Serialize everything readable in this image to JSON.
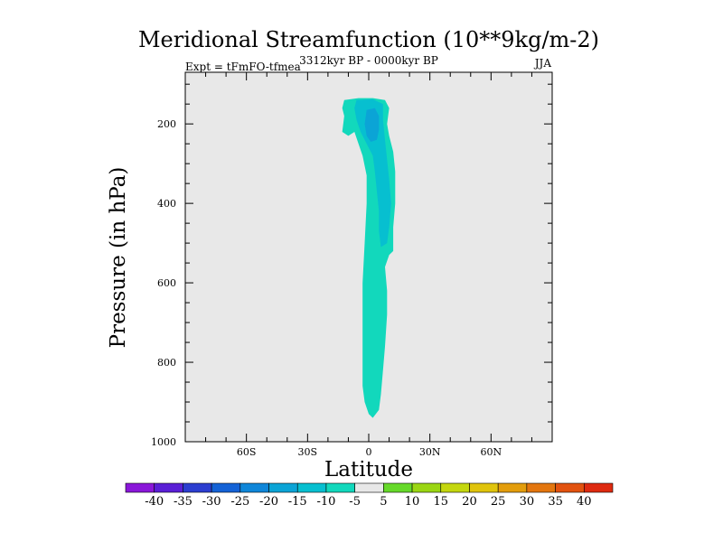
{
  "chart_data": {
    "type": "contour",
    "title": "Meridional Streamfunction (10**9kg/m-2)",
    "left_label": "Expt = tFmFO-tfmea",
    "center_label": "3312kyr BP - 0000kyr BP",
    "right_label": "JJA",
    "xlabel": "Latitude",
    "ylabel": "Pressure (in hPa)",
    "xlim": [
      -90,
      90
    ],
    "ylim": [
      1000,
      70
    ],
    "xticks": [
      -60,
      -30,
      0,
      30,
      60
    ],
    "xtick_labels": [
      "60S",
      "30S",
      "0",
      "30N",
      "60N"
    ],
    "yticks": [
      200,
      400,
      600,
      800,
      1000
    ],
    "ytick_labels": [
      "200",
      "400",
      "600",
      "800",
      "1000"
    ],
    "plot_background": "#e8e8e8",
    "colorbar": {
      "labels": [
        "-40",
        "-35",
        "-30",
        "-25",
        "-20",
        "-15",
        "-10",
        "-5",
        "5",
        "10",
        "15",
        "20",
        "25",
        "30",
        "35",
        "40"
      ],
      "colors": [
        "#8a17d9",
        "#5a1fd6",
        "#2c3ed0",
        "#1462d6",
        "#0f86d9",
        "#0ba4d6",
        "#07bfd0",
        "#12d8bc",
        "#e8e8e8",
        "#66d92a",
        "#9ad613",
        "#c4d70f",
        "#e0c40c",
        "#e39d0c",
        "#e3760e",
        "#e2520f",
        "#de2a10"
      ]
    },
    "regions": [
      {
        "level": "-10 to -5",
        "color": "#12d8bc",
        "points": [
          [
            -12,
            140
          ],
          [
            -5,
            135
          ],
          [
            2,
            135
          ],
          [
            8,
            140
          ],
          [
            10,
            160
          ],
          [
            9,
            200
          ],
          [
            10,
            230
          ],
          [
            12,
            270
          ],
          [
            13,
            320
          ],
          [
            13,
            360
          ],
          [
            13,
            400
          ],
          [
            12,
            460
          ],
          [
            12,
            520
          ],
          [
            10,
            530
          ],
          [
            8,
            560
          ],
          [
            9,
            620
          ],
          [
            9,
            680
          ],
          [
            8,
            760
          ],
          [
            7,
            820
          ],
          [
            6,
            880
          ],
          [
            5,
            920
          ],
          [
            2,
            940
          ],
          [
            0,
            930
          ],
          [
            -2,
            900
          ],
          [
            -3,
            860
          ],
          [
            -3,
            800
          ],
          [
            -3,
            700
          ],
          [
            -3,
            600
          ],
          [
            -2,
            500
          ],
          [
            -1,
            400
          ],
          [
            -1,
            330
          ],
          [
            -3,
            280
          ],
          [
            -5,
            250
          ],
          [
            -7,
            220
          ],
          [
            -10,
            230
          ],
          [
            -13,
            220
          ],
          [
            -12,
            180
          ],
          [
            -13,
            160
          ]
        ]
      },
      {
        "level": "-15 to -10",
        "color": "#07bfd0",
        "points": [
          [
            -6,
            140
          ],
          [
            2,
            138
          ],
          [
            7,
            150
          ],
          [
            7,
            190
          ],
          [
            8,
            240
          ],
          [
            9,
            290
          ],
          [
            10,
            340
          ],
          [
            11,
            400
          ],
          [
            10,
            460
          ],
          [
            9,
            500
          ],
          [
            6,
            510
          ],
          [
            5,
            470
          ],
          [
            5,
            420
          ],
          [
            4,
            370
          ],
          [
            3,
            320
          ],
          [
            2,
            280
          ],
          [
            0,
            260
          ],
          [
            -2,
            240
          ],
          [
            -4,
            220
          ],
          [
            -6,
            190
          ],
          [
            -7,
            160
          ]
        ]
      },
      {
        "level": "-20 to -15",
        "color": "#0ba4d6",
        "points": [
          [
            -1,
            165
          ],
          [
            3,
            160
          ],
          [
            5,
            180
          ],
          [
            5,
            215
          ],
          [
            4,
            240
          ],
          [
            1,
            245
          ],
          [
            -1,
            230
          ],
          [
            -2,
            200
          ]
        ]
      }
    ]
  }
}
